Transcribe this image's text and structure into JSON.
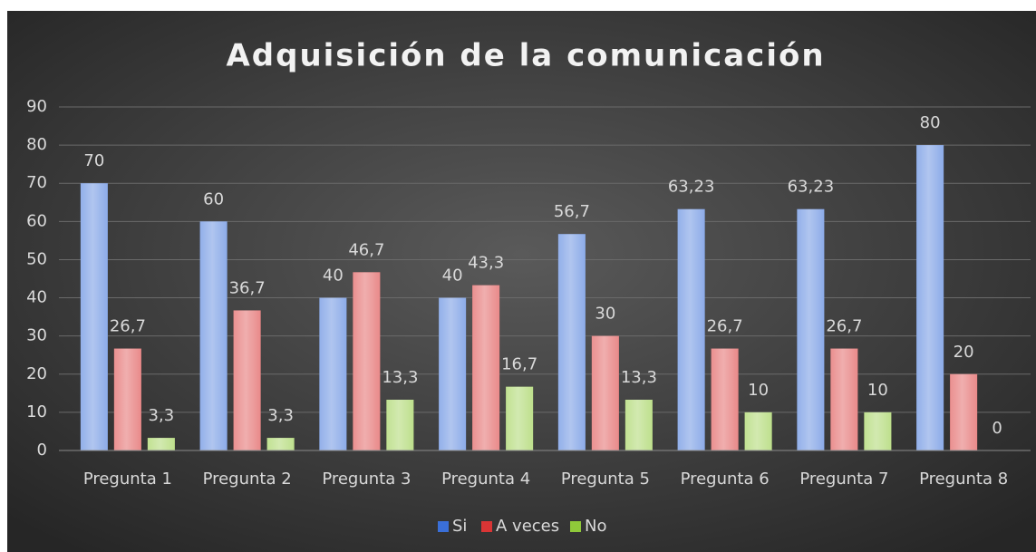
{
  "chart_data": {
    "type": "bar",
    "title": "Adquisición de la comunicación",
    "categories": [
      "Pregunta 1",
      "Pregunta 2",
      "Pregunta 3",
      "Pregunta 4",
      "Pregunta 5",
      "Pregunta 6",
      "Pregunta 7",
      "Pregunta 8"
    ],
    "series": [
      {
        "name": "Si",
        "color": "#3a6fd8",
        "values": [
          70,
          60,
          40,
          40,
          56.7,
          63.23,
          63.23,
          80
        ],
        "value_labels": [
          "70",
          "60",
          "40",
          "40",
          "56,7",
          "63,23",
          "63,23",
          "80"
        ]
      },
      {
        "name": "A veces",
        "color": "#d93535",
        "values": [
          26.7,
          36.7,
          46.7,
          43.3,
          30,
          26.7,
          26.7,
          20
        ],
        "value_labels": [
          "26,7",
          "36,7",
          "46,7",
          "43,3",
          "30",
          "26,7",
          "26,7",
          "20"
        ]
      },
      {
        "name": "No",
        "color": "#8fc93a",
        "values": [
          3.3,
          3.3,
          13.3,
          16.7,
          13.3,
          10,
          10,
          0
        ],
        "value_labels": [
          "3,3",
          "3,3",
          "13,3",
          "16,7",
          "13,3",
          "10",
          "10",
          "0"
        ]
      }
    ],
    "ylim": [
      0,
      90
    ],
    "yticks": [
      0,
      10,
      20,
      30,
      40,
      50,
      60,
      70,
      80,
      90
    ],
    "grid": true,
    "legend": "bottom"
  }
}
